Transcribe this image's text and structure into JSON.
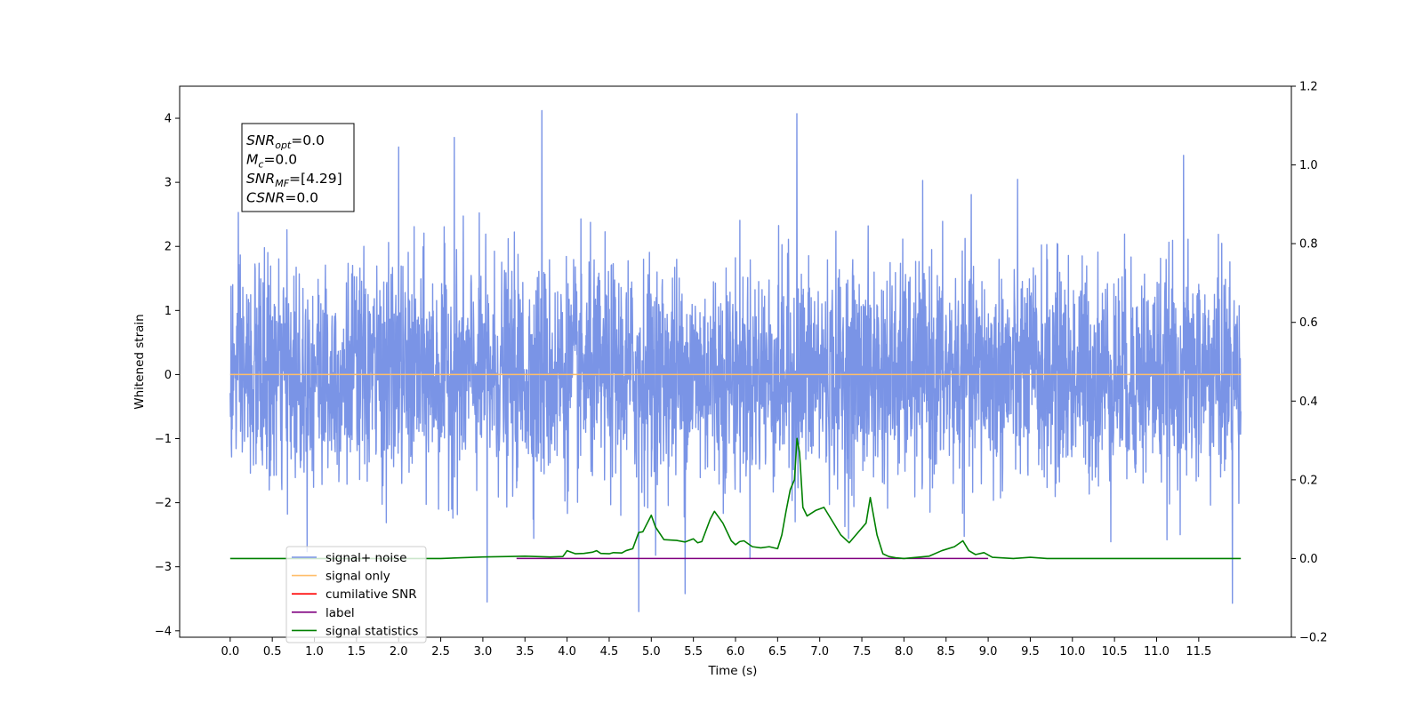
{
  "chart_data": {
    "type": "line",
    "title": "",
    "xlabel": "Time (s)",
    "ylabel": "Whitened strain",
    "y2label": "",
    "xlim": [
      -0.6,
      12.6
    ],
    "ylim": [
      -4.1,
      4.5
    ],
    "y2lim": [
      -0.2,
      1.2
    ],
    "x_ticks": [
      "0.0",
      "0.5",
      "1.0",
      "1.5",
      "2.0",
      "2.5",
      "3.0",
      "3.5",
      "4.0",
      "4.5",
      "5.0",
      "5.5",
      "6.0",
      "6.5",
      "7.0",
      "7.5",
      "8.0",
      "8.5",
      "9.0",
      "9.5",
      "10.0",
      "10.5",
      "11.0",
      "11.5"
    ],
    "y_ticks": [
      "4",
      "3",
      "2",
      "1",
      "0",
      "−1",
      "−2",
      "−3",
      "−4"
    ],
    "y2_ticks": [
      "1.2",
      "1.0",
      "0.8",
      "0.6",
      "0.4",
      "0.2",
      "0.0",
      "−0.2"
    ],
    "grid": false,
    "legend_position": "lower-left",
    "annotation": {
      "lines": [
        {
          "main": "SNR",
          "sub": "opt",
          "value": "=0.0"
        },
        {
          "main": "M",
          "sub": "c",
          "value": "=0.0"
        },
        {
          "main": "SNR",
          "sub": "MF",
          "value": "=[4.29]"
        },
        {
          "main": "CSNR",
          "sub": "",
          "value": "=0.0"
        }
      ]
    },
    "series": [
      {
        "name": "signal+ noise",
        "color": "#7a94e6",
        "axis": "left",
        "style": "dense Gaussian noise, amplitude roughly ±2, spikes to about ±4",
        "x_range": [
          0,
          12
        ],
        "peaks": [
          {
            "x": 3.7,
            "y": 4.12
          },
          {
            "x": 6.73,
            "y": 4.07
          },
          {
            "x": 2.66,
            "y": 3.7
          },
          {
            "x": 2.0,
            "y": 3.55
          },
          {
            "x": 11.32,
            "y": 3.42
          },
          {
            "x": 4.85,
            "y": -3.7
          },
          {
            "x": 11.9,
            "y": -3.57
          },
          {
            "x": 3.05,
            "y": -3.55
          },
          {
            "x": 5.4,
            "y": -3.42
          }
        ]
      },
      {
        "name": "signal only",
        "color": "#ffbe6a",
        "axis": "left",
        "x": [
          0,
          12
        ],
        "y": [
          0,
          0
        ]
      },
      {
        "name": "cumilative SNR",
        "color": "#ff0000",
        "axis": "right",
        "x": [],
        "y": []
      },
      {
        "name": "label",
        "color": "#800080",
        "axis": "right",
        "x": [
          3.4,
          9.0
        ],
        "y": [
          0.0,
          0.0
        ]
      },
      {
        "name": "signal statistics",
        "color": "#008000",
        "axis": "right",
        "x": [
          0,
          2.5,
          3.0,
          3.3,
          3.5,
          3.8,
          3.95,
          4.0,
          4.1,
          4.2,
          4.3,
          4.35,
          4.4,
          4.5,
          4.55,
          4.65,
          4.7,
          4.78,
          4.85,
          4.9,
          5.0,
          5.05,
          5.15,
          5.3,
          5.4,
          5.5,
          5.55,
          5.6,
          5.7,
          5.75,
          5.85,
          5.95,
          6.0,
          6.05,
          6.1,
          6.2,
          6.3,
          6.4,
          6.5,
          6.55,
          6.6,
          6.65,
          6.7,
          6.73,
          6.76,
          6.8,
          6.85,
          6.95,
          7.05,
          7.15,
          7.25,
          7.35,
          7.45,
          7.55,
          7.6,
          7.68,
          7.75,
          7.82,
          7.9,
          8.0,
          8.3,
          8.45,
          8.6,
          8.7,
          8.77,
          8.85,
          8.95,
          9.05,
          9.3,
          9.5,
          9.7,
          12.0
        ],
        "y": [
          0.0,
          0.0,
          0.004,
          0.005,
          0.006,
          0.004,
          0.005,
          0.02,
          0.012,
          0.013,
          0.016,
          0.02,
          0.013,
          0.012,
          0.015,
          0.014,
          0.02,
          0.025,
          0.066,
          0.068,
          0.11,
          0.08,
          0.048,
          0.046,
          0.042,
          0.05,
          0.04,
          0.043,
          0.1,
          0.12,
          0.09,
          0.045,
          0.035,
          0.043,
          0.045,
          0.03,
          0.027,
          0.03,
          0.025,
          0.06,
          0.12,
          0.175,
          0.2,
          0.305,
          0.27,
          0.13,
          0.108,
          0.122,
          0.13,
          0.095,
          0.06,
          0.04,
          0.065,
          0.09,
          0.155,
          0.06,
          0.012,
          0.005,
          0.002,
          0.0,
          0.006,
          0.02,
          0.03,
          0.045,
          0.02,
          0.01,
          0.015,
          0.003,
          0.0,
          0.003,
          0.0,
          0.0
        ]
      }
    ]
  }
}
